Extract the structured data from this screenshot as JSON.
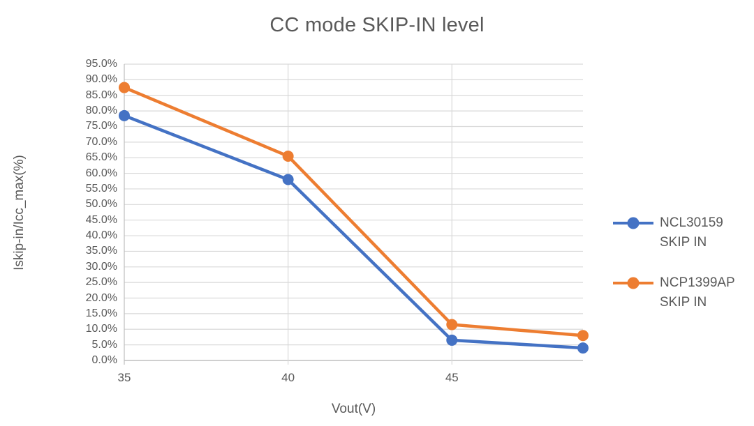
{
  "chart_data": {
    "type": "line",
    "title": "CC mode SKIP-IN level",
    "xlabel": "Vout(V)",
    "ylabel": "Iskip-in/Icc_max(%)",
    "x": [
      35,
      40,
      45,
      49
    ],
    "series": [
      {
        "name": "NCL30159 SKIP IN",
        "legend_lines": [
          "NCL30159",
          "SKIP IN"
        ],
        "color": "#4472C4",
        "marker": "circle",
        "values": [
          78.5,
          58.0,
          6.5,
          4.0
        ]
      },
      {
        "name": "NCP1399AP SKIP IN",
        "legend_lines": [
          "NCP1399AP",
          "SKIP IN"
        ],
        "color": "#ED7D31",
        "marker": "circle",
        "values": [
          87.5,
          65.5,
          11.5,
          8.0
        ]
      }
    ],
    "xlim": [
      35,
      49
    ],
    "ylim": [
      0,
      95
    ],
    "y_ticks": [
      "95.0%",
      "90.0%",
      "85.0%",
      "80.0%",
      "75.0%",
      "70.0%",
      "65.0%",
      "60.0%",
      "55.0%",
      "50.0%",
      "45.0%",
      "40.0%",
      "35.0%",
      "30.0%",
      "25.0%",
      "20.0%",
      "15.0%",
      "10.0%",
      "5.0%",
      "0.0%"
    ],
    "x_ticks": [
      "35",
      "40",
      "45"
    ],
    "grid": true,
    "legend_position": "right",
    "colors": {
      "text": "#595959",
      "gridline": "#D9D9D9",
      "axis_line": "#BFBFBF",
      "background": "#FFFFFF"
    }
  }
}
